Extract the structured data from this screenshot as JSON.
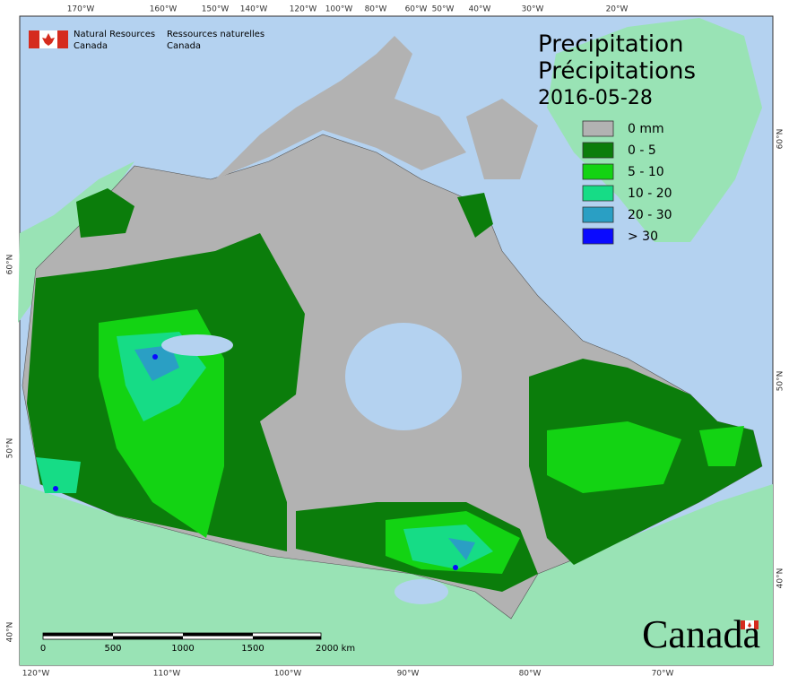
{
  "header": {
    "org_en_1": "Natural Resources",
    "org_en_2": "Canada",
    "org_fr_1": "Ressources naturelles",
    "org_fr_2": "Canada"
  },
  "title": {
    "en": "Precipitation",
    "fr": "Précipitations",
    "date": "2016-05-28"
  },
  "legend": [
    {
      "label": "0 mm",
      "color": "#b2b2b2"
    },
    {
      "label": "0 - 5",
      "color": "#0b7d0b"
    },
    {
      "label": "5 - 10",
      "color": "#13d313"
    },
    {
      "label": "10 - 20",
      "color": "#16dc86"
    },
    {
      "label": "20 - 30",
      "color": "#2a9fc4"
    },
    {
      "label": "> 30",
      "color": "#0a0aff"
    }
  ],
  "graticule": {
    "top": [
      "170°W",
      "160°W",
      "150°W",
      "140°W",
      "120°W",
      "100°W",
      "80°W",
      "60°W",
      "50°W",
      "40°W",
      "30°W",
      "20°W"
    ],
    "bottom": [
      "120°W",
      "110°W",
      "100°W",
      "90°W",
      "80°W",
      "70°W"
    ],
    "left": [
      "60°N",
      "50°N",
      "40°N"
    ],
    "right": [
      "60°N",
      "50°N",
      "40°N"
    ]
  },
  "scale_bar": [
    "0",
    "500",
    "1000",
    "1500",
    "2000 km"
  ],
  "wordmark": "Canada"
}
